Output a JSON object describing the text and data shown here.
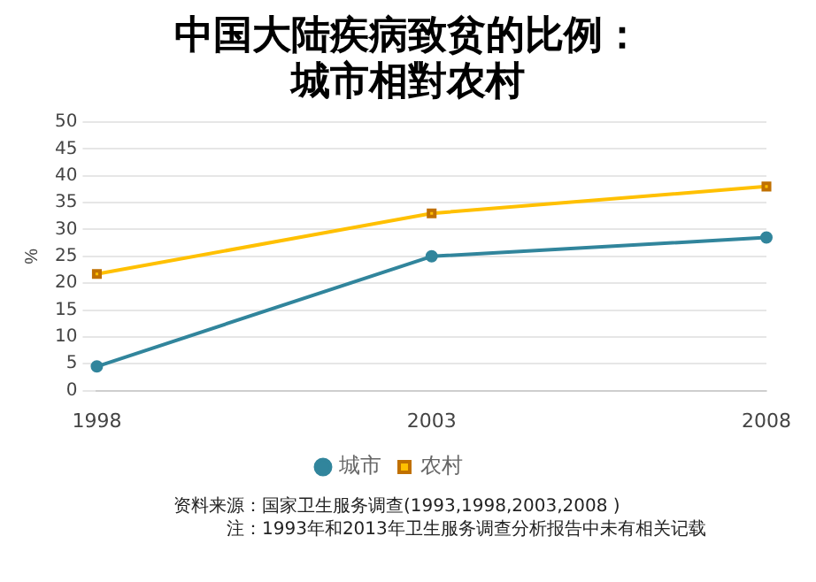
{
  "chart_data": {
    "type": "line",
    "title": "中国大陆疾病致贫的比例：城市相對农村",
    "ylabel": "%",
    "categories": [
      "1998",
      "2003",
      "2008"
    ],
    "series": [
      {
        "name": "城市",
        "color": "#31859c",
        "values": [
          4.5,
          25,
          28.5
        ],
        "marker": "circle"
      },
      {
        "name": "农村",
        "color": "#ffc000",
        "values": [
          21.7,
          33,
          38
        ],
        "marker": "square"
      }
    ],
    "ylim": [
      0,
      50
    ],
    "yticks": [
      0,
      5,
      10,
      15,
      20,
      25,
      30,
      35,
      40,
      45,
      50
    ],
    "grid": "y",
    "legend": "bottom",
    "annotations": [
      "资料来源：国家卫生服务调查(1993,1998,2003,2008 )",
      "注：1993年和2013年卫生服务调查分析报告中未有相关记载"
    ]
  }
}
